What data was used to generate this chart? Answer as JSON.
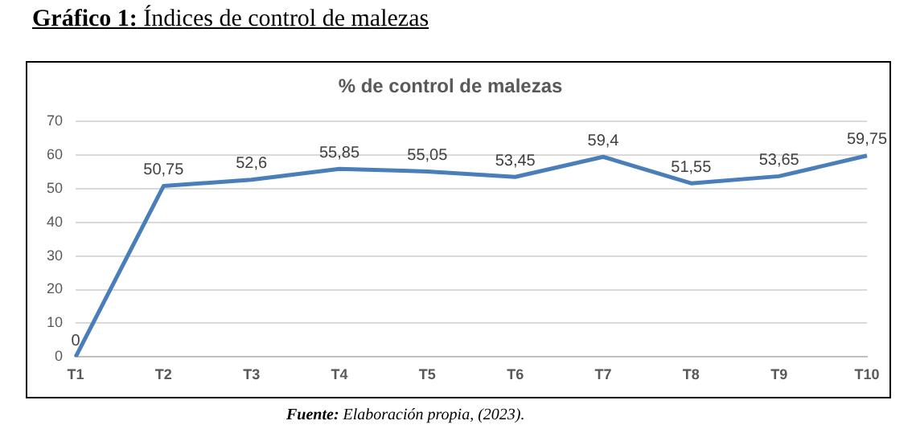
{
  "chart_data": {
    "type": "line",
    "title": "Gráfico 1: Índices de control de malezas",
    "subtitle": "% de control de malezas",
    "categories": [
      "T1",
      "T2",
      "T3",
      "T4",
      "T5",
      "T6",
      "T7",
      "T8",
      "T9",
      "T10"
    ],
    "series": [
      {
        "color": "#4a7ebb",
        "values": [
          0,
          50.75,
          52.6,
          55.85,
          55.05,
          53.45,
          59.4,
          51.55,
          53.65,
          59.75
        ],
        "value_labels": [
          "0",
          "50,75",
          "52,6",
          "55,85",
          "55,05",
          "53,45",
          "59,4",
          "51,55",
          "53,65",
          "59,75"
        ]
      }
    ],
    "ylim": [
      0,
      70
    ],
    "yticks": [
      0,
      10,
      20,
      30,
      40,
      50,
      60,
      70
    ],
    "grid": "y",
    "legend": false,
    "marker": "none",
    "line_style": "solid",
    "annotations": [
      "Fuente: Elaboración propia, (2023)."
    ]
  }
}
